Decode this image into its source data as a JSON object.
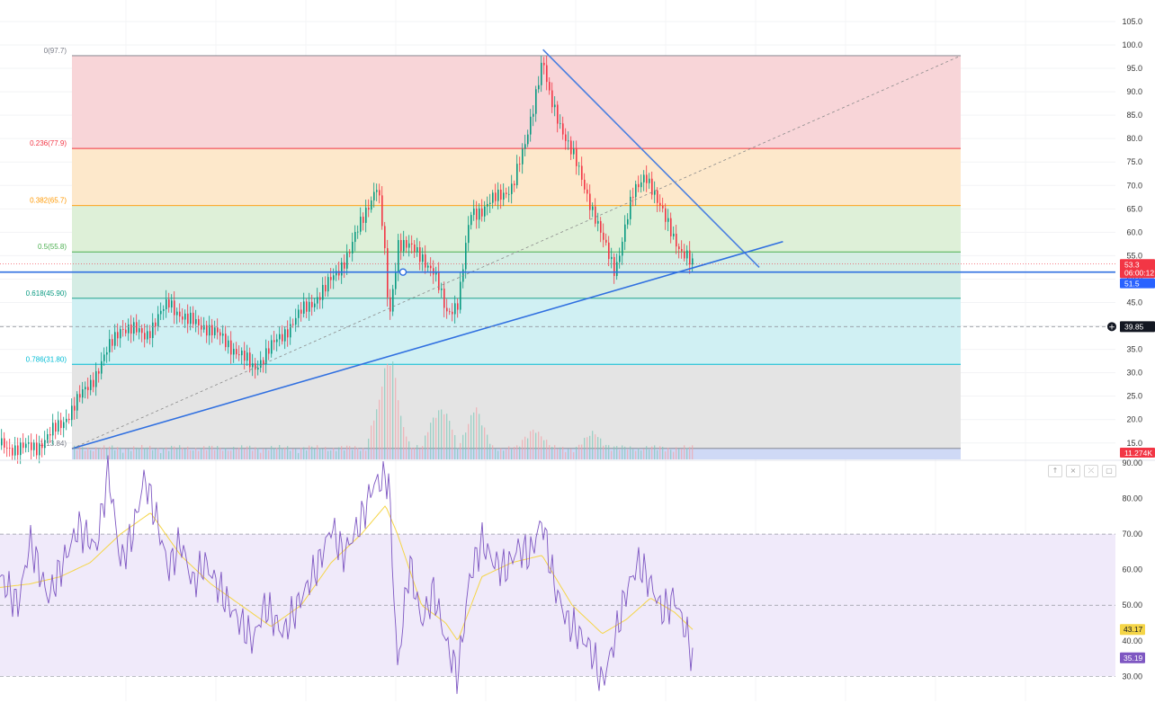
{
  "chart_data": [
    {
      "type": "candlestick",
      "y_axis_ticks": [
        "105.0",
        "100.0",
        "95.0",
        "90.0",
        "85.0",
        "80.0",
        "75.0",
        "70.0",
        "65.0",
        "60.0",
        "55.0",
        "50.0",
        "45.0",
        "40.0",
        "35.0",
        "30.0",
        "25.0",
        "20.0",
        "15.0"
      ],
      "y_axis_values": [
        105,
        100,
        95,
        90,
        85,
        80,
        75,
        70,
        65,
        60,
        55,
        50,
        45,
        40,
        35,
        30,
        25,
        20,
        15
      ],
      "ylim": [
        11.5,
        109.6
      ],
      "fibonacci": [
        {
          "label": "0(97.7)",
          "ratio": 0,
          "price": 97.7,
          "color": "#787b86"
        },
        {
          "label": "0.236(77.9)",
          "ratio": 0.236,
          "price": 77.9,
          "color": "#f23645"
        },
        {
          "label": "0.382(65.7)",
          "ratio": 0.382,
          "price": 65.7,
          "color": "#ff9800"
        },
        {
          "label": "0.5(55.8)",
          "ratio": 0.5,
          "price": 55.8,
          "color": "#4caf50"
        },
        {
          "label": "0.618(45.90)",
          "ratio": 0.618,
          "price": 45.9,
          "color": "#089981"
        },
        {
          "label": "0.786(31.80)",
          "ratio": 0.786,
          "price": 31.8,
          "color": "#00bcd4"
        },
        {
          "label": "1(13.84)",
          "ratio": 1,
          "price": 13.84,
          "color": "#787b86"
        }
      ],
      "zone_colors": [
        "#f8d3d6",
        "#fde7c8",
        "#dcefd6",
        "#d3ece3",
        "#cdeff2",
        "#e3e3e3"
      ],
      "price_path": [
        [
          0,
          14.5
        ],
        [
          0.03,
          13.8
        ],
        [
          0.06,
          14.2
        ],
        [
          0.1,
          19
        ],
        [
          0.15,
          28
        ],
        [
          0.2,
          40
        ],
        [
          0.24,
          38
        ],
        [
          0.28,
          45
        ],
        [
          0.31,
          41
        ],
        [
          0.34,
          40
        ],
        [
          0.38,
          36
        ],
        [
          0.42,
          31
        ],
        [
          0.46,
          37
        ],
        [
          0.5,
          43
        ],
        [
          0.54,
          48
        ],
        [
          0.58,
          56
        ],
        [
          0.61,
          66
        ],
        [
          0.625,
          70
        ],
        [
          0.635,
          60
        ],
        [
          0.645,
          41
        ],
        [
          0.66,
          58
        ],
        [
          0.7,
          55
        ],
        [
          0.72,
          51
        ],
        [
          0.74,
          43
        ],
        [
          0.76,
          45
        ],
        [
          0.78,
          64
        ],
        [
          0.8,
          65
        ],
        [
          0.83,
          68
        ],
        [
          0.85,
          70
        ],
        [
          0.87,
          78
        ],
        [
          0.89,
          91
        ],
        [
          0.9,
          97
        ],
        [
          0.91,
          89
        ],
        [
          0.93,
          83
        ],
        [
          0.96,
          73
        ],
        [
          0.98,
          66
        ],
        [
          1.0,
          58
        ],
        [
          1.02,
          52
        ],
        [
          1.05,
          68
        ],
        [
          1.07,
          73
        ],
        [
          1.09,
          66
        ],
        [
          1.11,
          62
        ],
        [
          1.13,
          55
        ],
        [
          1.15,
          53.3
        ]
      ],
      "volume_peaks": [
        [
          0.645,
          18
        ],
        [
          0.66,
          11
        ],
        [
          0.74,
          14
        ],
        [
          0.8,
          8
        ],
        [
          0.9,
          4
        ],
        [
          1.0,
          3
        ]
      ],
      "trendlines": [
        {
          "name": "descending-resistance",
          "from": [
            0.915,
            99.0
          ],
          "to": [
            1.28,
            52.5
          ],
          "color": "#4a7fe0"
        },
        {
          "name": "ascending-support",
          "from": [
            0.12,
            13.8
          ],
          "to": [
            1.32,
            58.0
          ],
          "color": "#2f6fe0"
        },
        {
          "name": "fib-diagonal",
          "from": [
            0.12,
            13.8
          ],
          "to": [
            1.62,
            97.7
          ],
          "color": "#8a8a8a"
        }
      ],
      "horizontal_line": {
        "price": 51.5,
        "color": "#2f6fe0"
      },
      "dashed_price_line": {
        "price": 39.85
      },
      "price_tags": [
        {
          "text": "53.3",
          "text2": "06:00:12",
          "color": "#f23645"
        },
        {
          "text": "51.5",
          "color": "#2962ff"
        },
        {
          "text": "39.85",
          "color": "#131722"
        },
        {
          "text": "11.274K",
          "color": "#f23645"
        }
      ]
    },
    {
      "type": "line",
      "indicator": "RSI",
      "y_axis_ticks": [
        "90.00",
        "80.00",
        "70.00",
        "60.00",
        "50.00",
        "40.00",
        "30.00"
      ],
      "y_axis_values": [
        90,
        80,
        70,
        60,
        50,
        40,
        30
      ],
      "ylim": [
        22.5,
        90.5
      ],
      "band": [
        30,
        70
      ],
      "midline": 50,
      "rsi_path": [
        [
          0,
          58
        ],
        [
          0.03,
          50
        ],
        [
          0.05,
          68
        ],
        [
          0.08,
          52
        ],
        [
          0.1,
          60
        ],
        [
          0.13,
          72
        ],
        [
          0.16,
          66
        ],
        [
          0.18,
          88
        ],
        [
          0.2,
          62
        ],
        [
          0.22,
          70
        ],
        [
          0.24,
          86
        ],
        [
          0.26,
          74
        ],
        [
          0.28,
          60
        ],
        [
          0.3,
          68
        ],
        [
          0.32,
          56
        ],
        [
          0.34,
          62
        ],
        [
          0.38,
          50
        ],
        [
          0.42,
          40
        ],
        [
          0.44,
          50
        ],
        [
          0.47,
          42
        ],
        [
          0.5,
          52
        ],
        [
          0.53,
          62
        ],
        [
          0.55,
          72
        ],
        [
          0.57,
          64
        ],
        [
          0.6,
          74
        ],
        [
          0.62,
          84
        ],
        [
          0.645,
          86
        ],
        [
          0.66,
          32
        ],
        [
          0.68,
          62
        ],
        [
          0.7,
          45
        ],
        [
          0.72,
          54
        ],
        [
          0.74,
          40
        ],
        [
          0.76,
          30
        ],
        [
          0.78,
          58
        ],
        [
          0.8,
          68
        ],
        [
          0.82,
          62
        ],
        [
          0.84,
          60
        ],
        [
          0.86,
          66
        ],
        [
          0.88,
          64
        ],
        [
          0.9,
          74
        ],
        [
          0.92,
          56
        ],
        [
          0.94,
          46
        ],
        [
          0.96,
          42
        ],
        [
          0.98,
          38
        ],
        [
          1.0,
          28
        ],
        [
          1.02,
          40
        ],
        [
          1.04,
          54
        ],
        [
          1.06,
          62
        ],
        [
          1.08,
          56
        ],
        [
          1.1,
          48
        ],
        [
          1.12,
          52
        ],
        [
          1.14,
          42
        ],
        [
          1.15,
          35.19
        ]
      ],
      "ma_path": [
        [
          0,
          55
        ],
        [
          0.05,
          56
        ],
        [
          0.1,
          58
        ],
        [
          0.15,
          62
        ],
        [
          0.2,
          70
        ],
        [
          0.25,
          76
        ],
        [
          0.3,
          64
        ],
        [
          0.35,
          56
        ],
        [
          0.4,
          50
        ],
        [
          0.45,
          44
        ],
        [
          0.5,
          50
        ],
        [
          0.55,
          62
        ],
        [
          0.6,
          70
        ],
        [
          0.64,
          78
        ],
        [
          0.66,
          70
        ],
        [
          0.7,
          50
        ],
        [
          0.74,
          45
        ],
        [
          0.76,
          40
        ],
        [
          0.8,
          58
        ],
        [
          0.85,
          62
        ],
        [
          0.9,
          64
        ],
        [
          0.95,
          50
        ],
        [
          1.0,
          42
        ],
        [
          1.04,
          46
        ],
        [
          1.08,
          52
        ],
        [
          1.12,
          48
        ],
        [
          1.15,
          43.17
        ]
      ],
      "price_tags": [
        {
          "text": "43.17",
          "color": "#f5d547",
          "text_color": "#131722"
        },
        {
          "text": "35.19",
          "color": "#7e57c2"
        }
      ],
      "band_color": "#f0eafa",
      "rsi_color": "#7e57c2",
      "ma_color": "#f5d547"
    }
  ],
  "pane_buttons": {
    "up_icon": "↑",
    "close_icon": "×",
    "collapse_icon": "⤫",
    "maximize_icon": "▢"
  }
}
